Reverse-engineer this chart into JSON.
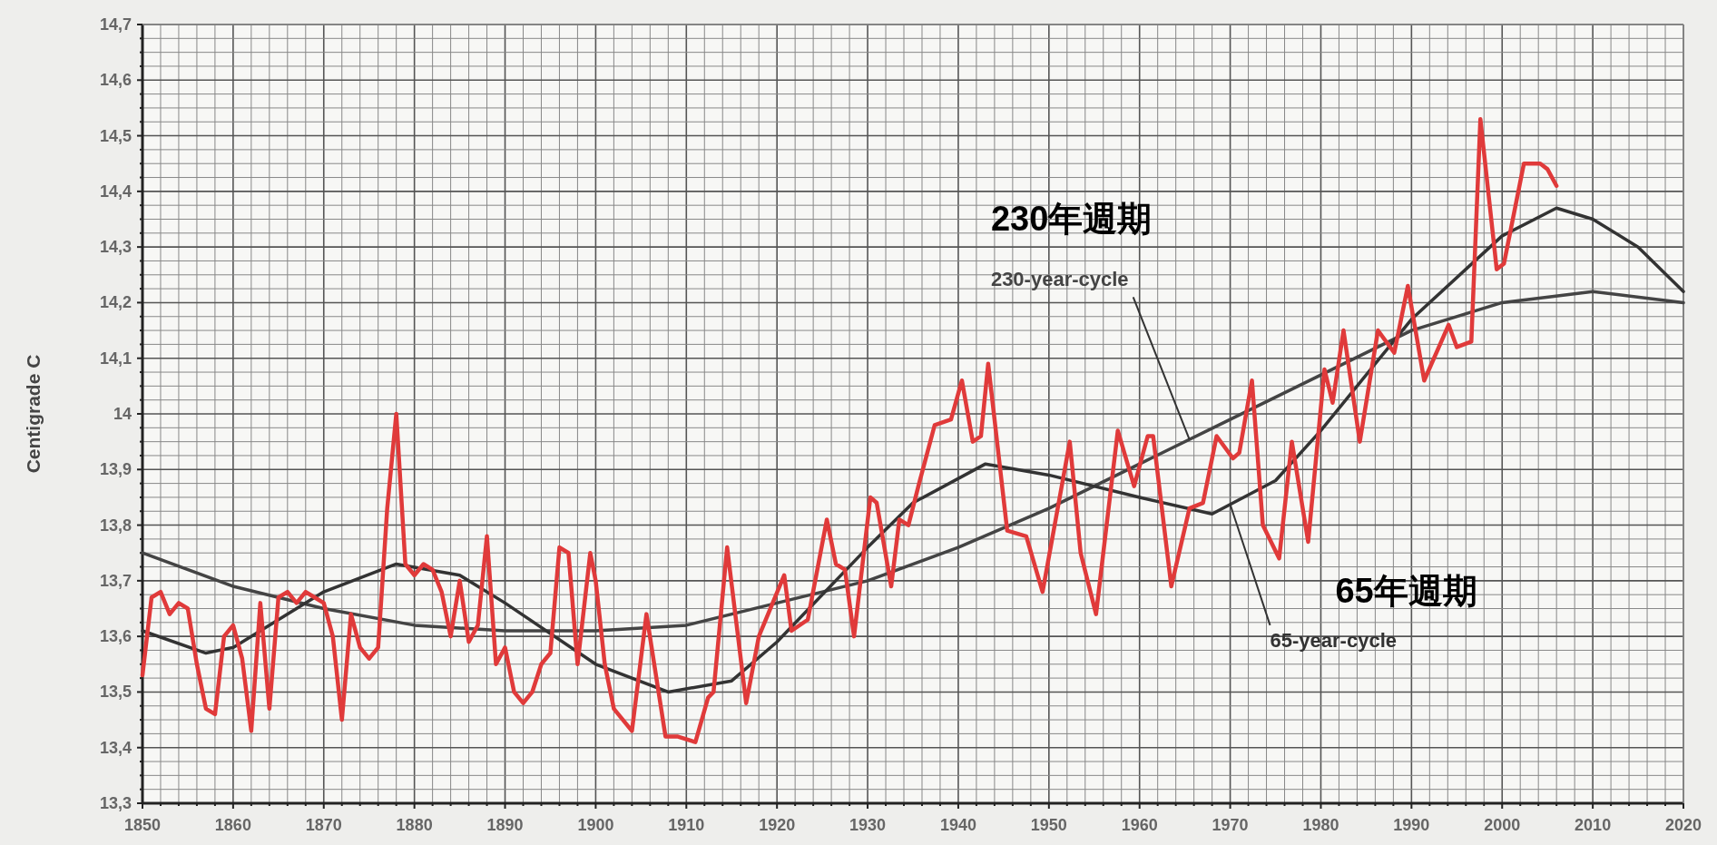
{
  "chart_data": {
    "type": "line",
    "ylabel": "Centigrade C",
    "grid": true,
    "marker": "none",
    "line_style": "solid",
    "xlim": [
      1850,
      2020
    ],
    "ylim": [
      13.3,
      14.7
    ],
    "xticks": [
      1850,
      {
        "value": 1852,
        "label": null
      },
      {
        "value": 1854,
        "label": null
      },
      {
        "value": 1856,
        "label": null
      },
      {
        "value": 1858,
        "label": null
      },
      1860,
      {
        "value": 1862,
        "label": null
      },
      {
        "value": 1864,
        "label": null
      },
      {
        "value": 1866,
        "label": null
      },
      {
        "value": 1868,
        "label": null
      },
      1870,
      {
        "value": 1872,
        "label": null
      },
      {
        "value": 1874,
        "label": null
      },
      {
        "value": 1876,
        "label": null
      },
      {
        "value": 1878,
        "label": null
      },
      1880,
      {
        "value": 1882,
        "label": null
      },
      {
        "value": 1884,
        "label": null
      },
      {
        "value": 1886,
        "label": null
      },
      {
        "value": 1888,
        "label": null
      },
      1890,
      {
        "value": 1892,
        "label": null
      },
      {
        "value": 1894,
        "label": null
      },
      {
        "value": 1896,
        "label": null
      },
      {
        "value": 1898,
        "label": null
      },
      1900,
      {
        "value": 1902,
        "label": null
      },
      {
        "value": 1904,
        "label": null
      },
      {
        "value": 1906,
        "label": null
      },
      {
        "value": 1908,
        "label": null
      },
      1910,
      {
        "value": 1912,
        "label": null
      },
      {
        "value": 1914,
        "label": null
      },
      {
        "value": 1916,
        "label": null
      },
      {
        "value": 1918,
        "label": null
      },
      1920,
      {
        "value": 1922,
        "label": null
      },
      {
        "value": 1924,
        "label": null
      },
      {
        "value": 1926,
        "label": null
      },
      {
        "value": 1928,
        "label": null
      },
      1930,
      {
        "value": 1932,
        "label": null
      },
      {
        "value": 1934,
        "label": null
      },
      {
        "value": 1936,
        "label": null
      },
      {
        "value": 1938,
        "label": null
      },
      1940,
      {
        "value": 1942,
        "label": null
      },
      {
        "value": 1944,
        "label": null
      },
      {
        "value": 1946,
        "label": null
      },
      {
        "value": 1948,
        "label": null
      },
      1950,
      {
        "value": 1952,
        "label": null
      },
      {
        "value": 1954,
        "label": null
      },
      {
        "value": 1956,
        "label": null
      },
      {
        "value": 1958,
        "label": null
      },
      1960,
      {
        "value": 1962,
        "label": null
      },
      {
        "value": 1964,
        "label": null
      },
      {
        "value": 1966,
        "label": null
      },
      {
        "value": 1968,
        "label": null
      },
      1970,
      {
        "value": 1972,
        "label": null
      },
      {
        "value": 1974,
        "label": null
      },
      {
        "value": 1976,
        "label": null
      },
      {
        "value": 1978,
        "label": null
      },
      1980,
      {
        "value": 1982,
        "label": null
      },
      {
        "value": 1984,
        "label": null
      },
      {
        "value": 1986,
        "label": null
      },
      {
        "value": 1988,
        "label": null
      },
      1990,
      {
        "value": 1992,
        "label": null
      },
      {
        "value": 1994,
        "label": null
      },
      {
        "value": 1996,
        "label": null
      },
      {
        "value": 1998,
        "label": null
      },
      2000,
      {
        "value": 2002,
        "label": null
      },
      {
        "value": 2004,
        "label": null
      },
      {
        "value": 2006,
        "label": null
      },
      {
        "value": 2008,
        "label": null
      },
      2010,
      {
        "value": 2012,
        "label": null
      },
      {
        "value": 2014,
        "label": null
      },
      {
        "value": 2016,
        "label": null
      },
      {
        "value": 2018,
        "label": null
      },
      2020
    ],
    "yticks": [
      {
        "value": 13.3,
        "label": "13,3"
      },
      {
        "value": 13.325,
        "label": null
      },
      {
        "value": 13.35,
        "label": null
      },
      {
        "value": 13.375,
        "label": null
      },
      {
        "value": 13.4,
        "label": "13,4"
      },
      {
        "value": 13.425,
        "label": null
      },
      {
        "value": 13.45,
        "label": null
      },
      {
        "value": 13.475,
        "label": null
      },
      {
        "value": 13.5,
        "label": "13,5"
      },
      {
        "value": 13.525,
        "label": null
      },
      {
        "value": 13.55,
        "label": null
      },
      {
        "value": 13.575,
        "label": null
      },
      {
        "value": 13.6,
        "label": "13,6"
      },
      {
        "value": 13.625,
        "label": null
      },
      {
        "value": 13.65,
        "label": null
      },
      {
        "value": 13.675,
        "label": null
      },
      {
        "value": 13.7,
        "label": "13,7"
      },
      {
        "value": 13.725,
        "label": null
      },
      {
        "value": 13.75,
        "label": null
      },
      {
        "value": 13.775,
        "label": null
      },
      {
        "value": 13.8,
        "label": "13,8"
      },
      {
        "value": 13.825,
        "label": null
      },
      {
        "value": 13.85,
        "label": null
      },
      {
        "value": 13.875,
        "label": null
      },
      {
        "value": 13.9,
        "label": "13,9"
      },
      {
        "value": 13.925,
        "label": null
      },
      {
        "value": 13.95,
        "label": null
      },
      {
        "value": 13.975,
        "label": null
      },
      14,
      {
        "value": 14.025,
        "label": null
      },
      {
        "value": 14.05,
        "label": null
      },
      {
        "value": 14.075,
        "label": null
      },
      {
        "value": 14.1,
        "label": "14,1"
      },
      {
        "value": 14.125,
        "label": null
      },
      {
        "value": 14.15,
        "label": null
      },
      {
        "value": 14.175,
        "label": null
      },
      {
        "value": 14.2,
        "label": "14,2"
      },
      {
        "value": 14.225,
        "label": null
      },
      {
        "value": 14.25,
        "label": null
      },
      {
        "value": 14.275,
        "label": null
      },
      {
        "value": 14.3,
        "label": "14,3"
      },
      {
        "value": 14.325,
        "label": null
      },
      {
        "value": 14.35,
        "label": null
      },
      {
        "value": 14.375,
        "label": null
      },
      {
        "value": 14.4,
        "label": "14,4"
      },
      {
        "value": 14.425,
        "label": null
      },
      {
        "value": 14.45,
        "label": null
      },
      {
        "value": 14.475,
        "label": null
      },
      {
        "value": 14.5,
        "label": "14,5"
      },
      {
        "value": 14.525,
        "label": null
      },
      {
        "value": 14.55,
        "label": null
      },
      {
        "value": 14.575,
        "label": null
      },
      {
        "value": 14.6,
        "label": "14,6"
      },
      {
        "value": 14.625,
        "label": null
      },
      {
        "value": 14.65,
        "label": null
      },
      {
        "value": 14.675,
        "label": null
      },
      {
        "value": 14.7,
        "label": "14,7"
      }
    ],
    "series": [
      {
        "color": "#444444",
        "x": [
          1850,
          1860,
          1870,
          1880,
          1890,
          1900,
          1910,
          1920,
          1930,
          1940,
          1950,
          1960,
          1970,
          1980,
          1990,
          2000,
          2010,
          2020
        ],
        "values": [
          13.75,
          13.69,
          13.65,
          13.62,
          13.61,
          13.61,
          13.62,
          13.66,
          13.7,
          13.76,
          13.83,
          13.91,
          13.99,
          14.07,
          14.15,
          14.2,
          14.22,
          14.2
        ],
        "name": "230-year-cycle"
      },
      {
        "color": "#333333",
        "x": [
          1850,
          1857,
          1860,
          1865,
          1870,
          1878,
          1885,
          1890,
          1900,
          1908,
          1915,
          1920,
          1930,
          1935,
          1943,
          1950,
          1960,
          1968,
          1975,
          1980,
          1990,
          2000,
          2006,
          2010,
          2015,
          2020
        ],
        "values": [
          13.61,
          13.57,
          13.58,
          13.63,
          13.68,
          13.73,
          13.71,
          13.66,
          13.55,
          13.5,
          13.52,
          13.59,
          13.76,
          13.84,
          13.91,
          13.89,
          13.85,
          13.82,
          13.88,
          13.97,
          14.17,
          14.32,
          14.37,
          14.35,
          14.3,
          14.22
        ],
        "name": "65-year-cycle"
      },
      {
        "color": "#e03a3a",
        "x": [
          1850,
          1851,
          1852,
          1853,
          1854,
          1855,
          1856,
          1857,
          1858,
          1859,
          1860,
          1861,
          1862,
          1863,
          1864,
          1865,
          1866,
          1867,
          1868,
          1869,
          1870,
          1871,
          1872,
          1873,
          1874,
          1875,
          1876,
          1877,
          1878,
          1879,
          1880,
          1881,
          1882,
          1883,
          1884,
          1885,
          1886,
          1887,
          1888,
          1889,
          1890,
          1891,
          1892,
          1893,
          1894,
          1895,
          1896,
          1897,
          1898,
          1899.4,
          1900,
          1901,
          1902,
          1904,
          1905.6,
          1907.7,
          1909,
          1911,
          1912.4,
          1913,
          1914.5,
          1916.6,
          1918,
          1920.8,
          1921.6,
          1923.4,
          1925.5,
          1926.5,
          1927.5,
          1928.5,
          1930.3,
          1931,
          1932.6,
          1933.5,
          1934.5,
          1935.6,
          1937.4,
          1939.2,
          1940.4,
          1941.6,
          1942.5,
          1943.3,
          1945.4,
          1947.5,
          1949.3,
          1952.3,
          1953.5,
          1955.2,
          1957.6,
          1959.4,
          1960.9,
          1961.5,
          1963.5,
          1965.5,
          1967,
          1968.5,
          1970.3,
          1971,
          1972.4,
          1973.6,
          1975.4,
          1976.8,
          1978.6,
          1980.4,
          1981.3,
          1982.5,
          1984.3,
          1986.3,
          1988.1,
          1989.6,
          1991.4,
          1994.1,
          1995,
          1996.6,
          1997.6,
          1999.4,
          2000.2,
          2002.4,
          2004.2,
          2005,
          2006
        ],
        "values": [
          13.53,
          13.67,
          13.68,
          13.64,
          13.66,
          13.65,
          13.55,
          13.47,
          13.46,
          13.6,
          13.62,
          13.56,
          13.43,
          13.66,
          13.47,
          13.67,
          13.68,
          13.66,
          13.68,
          13.67,
          13.66,
          13.6,
          13.45,
          13.64,
          13.58,
          13.56,
          13.58,
          13.83,
          14.0,
          13.73,
          13.71,
          13.73,
          13.72,
          13.68,
          13.6,
          13.7,
          13.59,
          13.62,
          13.78,
          13.55,
          13.58,
          13.5,
          13.48,
          13.5,
          13.55,
          13.57,
          13.76,
          13.75,
          13.55,
          13.75,
          13.7,
          13.55,
          13.47,
          13.43,
          13.64,
          13.42,
          13.42,
          13.41,
          13.49,
          13.5,
          13.76,
          13.48,
          13.6,
          13.71,
          13.61,
          13.63,
          13.81,
          13.73,
          13.72,
          13.6,
          13.85,
          13.84,
          13.69,
          13.81,
          13.8,
          13.87,
          13.98,
          13.99,
          14.06,
          13.95,
          13.96,
          14.09,
          13.79,
          13.78,
          13.68,
          13.95,
          13.75,
          13.64,
          13.97,
          13.87,
          13.96,
          13.96,
          13.69,
          13.83,
          13.84,
          13.96,
          13.92,
          13.93,
          14.06,
          13.8,
          13.74,
          13.95,
          13.77,
          14.08,
          14.02,
          14.15,
          13.95,
          14.15,
          14.11,
          14.23,
          14.06,
          14.16,
          14.12,
          14.13,
          14.53,
          14.26,
          14.27,
          14.45,
          14.45,
          14.44,
          14.41
        ]
      }
    ],
    "annotations": [
      "230年週期",
      "65年週期"
    ]
  }
}
